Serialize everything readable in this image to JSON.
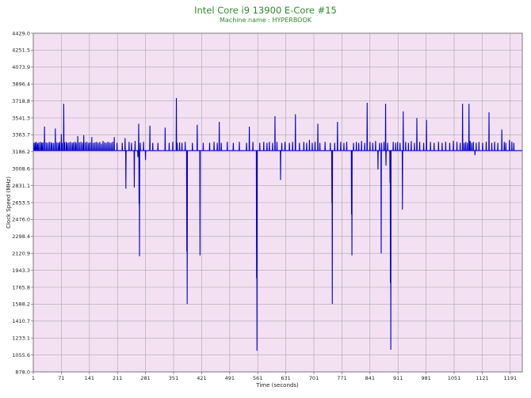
{
  "chart_data": {
    "type": "line",
    "title": "Intel Core i9 13900 E-Core #15",
    "subtitle": "Machine name : HYPERBOOK",
    "xlabel": "Time (seconds)",
    "ylabel": "Clock Speed (MHz)",
    "xlim": [
      1,
      1221
    ],
    "ylim": [
      878.0,
      4429.0
    ],
    "x_ticks": [
      "1",
      "71",
      "141",
      "211",
      "281",
      "351",
      "421",
      "491",
      "561",
      "631",
      "701",
      "771",
      "841",
      "911",
      "981",
      "1051",
      "1121",
      "1191"
    ],
    "y_ticks": [
      "4429.0",
      "4251.5",
      "4073.9",
      "3896.4",
      "3718.8",
      "3541.3",
      "3363.7",
      "3186.2",
      "3008.6",
      "2831.1",
      "2653.5",
      "2476.0",
      "2298.4",
      "2120.9",
      "1943.3",
      "1765.8",
      "1588.2",
      "1410.7",
      "1233.1",
      "1055.6",
      "878.0"
    ],
    "grid": true,
    "background": "#f3e1f3",
    "line_color": "#0000cc",
    "series": [
      {
        "name": "",
        "baseline": 3199,
        "events": [
          {
            "x": 3,
            "y": 3280
          },
          {
            "x": 6,
            "y": 3285
          },
          {
            "x": 9,
            "y": 3290
          },
          {
            "x": 12,
            "y": 3275
          },
          {
            "x": 15,
            "y": 3285
          },
          {
            "x": 19,
            "y": 3290
          },
          {
            "x": 22,
            "y": 3280
          },
          {
            "x": 25,
            "y": 3285
          },
          {
            "x": 29,
            "y": 3450
          },
          {
            "x": 33,
            "y": 3285
          },
          {
            "x": 37,
            "y": 3280
          },
          {
            "x": 41,
            "y": 3290
          },
          {
            "x": 45,
            "y": 3285
          },
          {
            "x": 48,
            "y": 3280
          },
          {
            "x": 52,
            "y": 3280
          },
          {
            "x": 56,
            "y": 3430
          },
          {
            "x": 60,
            "y": 3285
          },
          {
            "x": 64,
            "y": 3280
          },
          {
            "x": 67,
            "y": 3290
          },
          {
            "x": 71,
            "y": 3370
          },
          {
            "x": 73,
            "y": 3280
          },
          {
            "x": 77,
            "y": 3690
          },
          {
            "x": 79,
            "y": 3285
          },
          {
            "x": 83,
            "y": 3290
          },
          {
            "x": 86,
            "y": 3280
          },
          {
            "x": 90,
            "y": 3285
          },
          {
            "x": 94,
            "y": 3290
          },
          {
            "x": 98,
            "y": 3280
          },
          {
            "x": 101,
            "y": 3285
          },
          {
            "x": 105,
            "y": 3290
          },
          {
            "x": 108,
            "y": 3280
          },
          {
            "x": 112,
            "y": 3350
          },
          {
            "x": 116,
            "y": 3285
          },
          {
            "x": 120,
            "y": 3290
          },
          {
            "x": 124,
            "y": 3280
          },
          {
            "x": 127,
            "y": 3360
          },
          {
            "x": 131,
            "y": 3285
          },
          {
            "x": 135,
            "y": 3290
          },
          {
            "x": 139,
            "y": 3280
          },
          {
            "x": 143,
            "y": 3285
          },
          {
            "x": 147,
            "y": 3340
          },
          {
            "x": 151,
            "y": 3280
          },
          {
            "x": 155,
            "y": 3285
          },
          {
            "x": 159,
            "y": 3290
          },
          {
            "x": 163,
            "y": 3280
          },
          {
            "x": 167,
            "y": 3290
          },
          {
            "x": 171,
            "y": 3270
          },
          {
            "x": 175,
            "y": 3300
          },
          {
            "x": 179,
            "y": 3285
          },
          {
            "x": 183,
            "y": 3280
          },
          {
            "x": 187,
            "y": 3290
          },
          {
            "x": 191,
            "y": 3285
          },
          {
            "x": 195,
            "y": 3280
          },
          {
            "x": 199,
            "y": 3290
          },
          {
            "x": 203,
            "y": 3340
          },
          {
            "x": 210,
            "y": 3280
          },
          {
            "x": 223,
            "y": 3280
          },
          {
            "x": 230,
            "y": 3330
          },
          {
            "x": 232,
            "y": 2800
          },
          {
            "x": 240,
            "y": 3290
          },
          {
            "x": 246,
            "y": 3280
          },
          {
            "x": 253,
            "y": 2810
          },
          {
            "x": 255,
            "y": 3300
          },
          {
            "x": 262,
            "y": 3130
          },
          {
            "x": 264,
            "y": 3480
          },
          {
            "x": 265,
            "y": 2640
          },
          {
            "x": 266,
            "y": 2090
          },
          {
            "x": 268,
            "y": 3280
          },
          {
            "x": 276,
            "y": 3290
          },
          {
            "x": 281,
            "y": 3100
          },
          {
            "x": 292,
            "y": 3460
          },
          {
            "x": 299,
            "y": 3280
          },
          {
            "x": 312,
            "y": 3280
          },
          {
            "x": 330,
            "y": 3440
          },
          {
            "x": 340,
            "y": 3280
          },
          {
            "x": 349,
            "y": 3290
          },
          {
            "x": 358,
            "y": 3750
          },
          {
            "x": 360,
            "y": 3280
          },
          {
            "x": 366,
            "y": 3285
          },
          {
            "x": 372,
            "y": 3280
          },
          {
            "x": 380,
            "y": 3290
          },
          {
            "x": 384,
            "y": 2140
          },
          {
            "x": 385,
            "y": 1590
          },
          {
            "x": 398,
            "y": 3280
          },
          {
            "x": 410,
            "y": 3470
          },
          {
            "x": 417,
            "y": 2100
          },
          {
            "x": 417,
            "y": 3160
          },
          {
            "x": 425,
            "y": 3280
          },
          {
            "x": 441,
            "y": 3280
          },
          {
            "x": 452,
            "y": 3290
          },
          {
            "x": 460,
            "y": 3280
          },
          {
            "x": 465,
            "y": 3500
          },
          {
            "x": 470,
            "y": 3280
          },
          {
            "x": 485,
            "y": 3290
          },
          {
            "x": 500,
            "y": 3280
          },
          {
            "x": 515,
            "y": 3290
          },
          {
            "x": 533,
            "y": 3280
          },
          {
            "x": 540,
            "y": 3450
          },
          {
            "x": 549,
            "y": 3290
          },
          {
            "x": 558,
            "y": 1860
          },
          {
            "x": 559,
            "y": 1100
          },
          {
            "x": 566,
            "y": 3280
          },
          {
            "x": 576,
            "y": 3290
          },
          {
            "x": 584,
            "y": 3280
          },
          {
            "x": 590,
            "y": 3290
          },
          {
            "x": 598,
            "y": 3280
          },
          {
            "x": 604,
            "y": 3560
          },
          {
            "x": 609,
            "y": 3290
          },
          {
            "x": 618,
            "y": 2890
          },
          {
            "x": 621,
            "y": 3280
          },
          {
            "x": 629,
            "y": 3290
          },
          {
            "x": 640,
            "y": 3280
          },
          {
            "x": 648,
            "y": 3290
          },
          {
            "x": 655,
            "y": 3580
          },
          {
            "x": 665,
            "y": 3280
          },
          {
            "x": 676,
            "y": 3290
          },
          {
            "x": 683,
            "y": 3280
          },
          {
            "x": 690,
            "y": 3310
          },
          {
            "x": 697,
            "y": 3280
          },
          {
            "x": 704,
            "y": 3290
          },
          {
            "x": 711,
            "y": 3480
          },
          {
            "x": 716,
            "y": 3280
          },
          {
            "x": 729,
            "y": 3290
          },
          {
            "x": 742,
            "y": 3280
          },
          {
            "x": 746,
            "y": 2650
          },
          {
            "x": 747,
            "y": 1590
          },
          {
            "x": 753,
            "y": 3280
          },
          {
            "x": 760,
            "y": 3500
          },
          {
            "x": 768,
            "y": 3290
          },
          {
            "x": 776,
            "y": 3280
          },
          {
            "x": 783,
            "y": 3290
          },
          {
            "x": 795,
            "y": 2530
          },
          {
            "x": 796,
            "y": 2100
          },
          {
            "x": 800,
            "y": 3280
          },
          {
            "x": 807,
            "y": 3290
          },
          {
            "x": 813,
            "y": 3280
          },
          {
            "x": 820,
            "y": 3300
          },
          {
            "x": 828,
            "y": 3280
          },
          {
            "x": 834,
            "y": 3700
          },
          {
            "x": 841,
            "y": 3290
          },
          {
            "x": 848,
            "y": 3280
          },
          {
            "x": 855,
            "y": 3300
          },
          {
            "x": 861,
            "y": 3000
          },
          {
            "x": 865,
            "y": 3280
          },
          {
            "x": 869,
            "y": 2120
          },
          {
            "x": 870,
            "y": 3280
          },
          {
            "x": 876,
            "y": 3290
          },
          {
            "x": 880,
            "y": 3690
          },
          {
            "x": 881,
            "y": 3040
          },
          {
            "x": 885,
            "y": 3280
          },
          {
            "x": 891,
            "y": 2860
          },
          {
            "x": 892,
            "y": 1810
          },
          {
            "x": 893,
            "y": 1110
          },
          {
            "x": 899,
            "y": 3290
          },
          {
            "x": 905,
            "y": 3280
          },
          {
            "x": 910,
            "y": 3290
          },
          {
            "x": 916,
            "y": 3280
          },
          {
            "x": 922,
            "y": 2580
          },
          {
            "x": 924,
            "y": 3610
          },
          {
            "x": 930,
            "y": 3290
          },
          {
            "x": 937,
            "y": 3280
          },
          {
            "x": 944,
            "y": 3300
          },
          {
            "x": 952,
            "y": 3280
          },
          {
            "x": 958,
            "y": 3540
          },
          {
            "x": 965,
            "y": 3290
          },
          {
            "x": 975,
            "y": 3280
          },
          {
            "x": 982,
            "y": 3520
          },
          {
            "x": 992,
            "y": 3290
          },
          {
            "x": 1001,
            "y": 3280
          },
          {
            "x": 1012,
            "y": 3290
          },
          {
            "x": 1021,
            "y": 3280
          },
          {
            "x": 1030,
            "y": 3290
          },
          {
            "x": 1040,
            "y": 3280
          },
          {
            "x": 1049,
            "y": 3300
          },
          {
            "x": 1058,
            "y": 3290
          },
          {
            "x": 1066,
            "y": 3280
          },
          {
            "x": 1072,
            "y": 3690
          },
          {
            "x": 1076,
            "y": 3280
          },
          {
            "x": 1080,
            "y": 3290
          },
          {
            "x": 1084,
            "y": 3280
          },
          {
            "x": 1088,
            "y": 3690
          },
          {
            "x": 1091,
            "y": 3300
          },
          {
            "x": 1095,
            "y": 3280
          },
          {
            "x": 1099,
            "y": 3290
          },
          {
            "x": 1103,
            "y": 3150
          },
          {
            "x": 1106,
            "y": 3280
          },
          {
            "x": 1113,
            "y": 3290
          },
          {
            "x": 1122,
            "y": 3280
          },
          {
            "x": 1131,
            "y": 3290
          },
          {
            "x": 1138,
            "y": 3600
          },
          {
            "x": 1145,
            "y": 3280
          },
          {
            "x": 1152,
            "y": 3290
          },
          {
            "x": 1160,
            "y": 3280
          },
          {
            "x": 1170,
            "y": 3420
          },
          {
            "x": 1176,
            "y": 3290
          },
          {
            "x": 1180,
            "y": 3280
          },
          {
            "x": 1189,
            "y": 3310
          },
          {
            "x": 1195,
            "y": 3290
          },
          {
            "x": 1200,
            "y": 3280
          }
        ]
      }
    ]
  }
}
